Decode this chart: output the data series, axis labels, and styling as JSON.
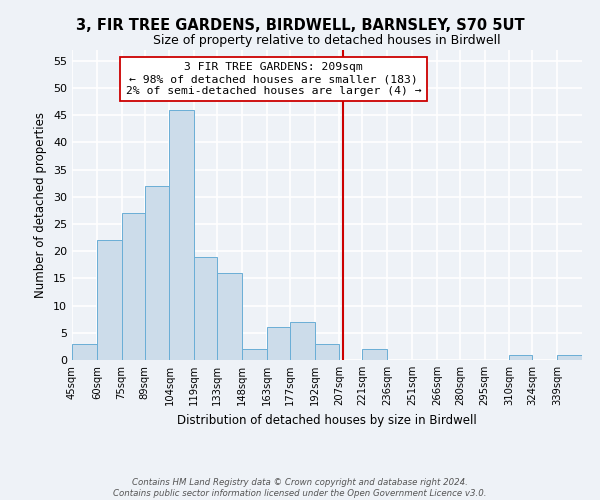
{
  "title": "3, FIR TREE GARDENS, BIRDWELL, BARNSLEY, S70 5UT",
  "subtitle": "Size of property relative to detached houses in Birdwell",
  "xlabel": "Distribution of detached houses by size in Birdwell",
  "ylabel": "Number of detached properties",
  "bin_labels": [
    "45sqm",
    "60sqm",
    "75sqm",
    "89sqm",
    "104sqm",
    "119sqm",
    "133sqm",
    "148sqm",
    "163sqm",
    "177sqm",
    "192sqm",
    "207sqm",
    "221sqm",
    "236sqm",
    "251sqm",
    "266sqm",
    "280sqm",
    "295sqm",
    "310sqm",
    "324sqm",
    "339sqm"
  ],
  "bin_edges": [
    45,
    60,
    75,
    89,
    104,
    119,
    133,
    148,
    163,
    177,
    192,
    207,
    221,
    236,
    251,
    266,
    280,
    295,
    310,
    324,
    339,
    354
  ],
  "bar_heights": [
    3,
    22,
    27,
    32,
    46,
    19,
    16,
    2,
    6,
    7,
    3,
    0,
    2,
    0,
    0,
    0,
    0,
    0,
    1,
    0,
    1
  ],
  "bar_color": "#ccdcea",
  "bar_edge_color": "#6aaed6",
  "reference_line_x": 209,
  "reference_line_color": "#cc0000",
  "annotation_line1": "3 FIR TREE GARDENS: 209sqm",
  "annotation_line2": "← 98% of detached houses are smaller (183)",
  "annotation_line3": "2% of semi-detached houses are larger (4) →",
  "annotation_box_color": "#ffffff",
  "annotation_box_edge": "#cc0000",
  "ylim": [
    0,
    57
  ],
  "yticks": [
    0,
    5,
    10,
    15,
    20,
    25,
    30,
    35,
    40,
    45,
    50,
    55
  ],
  "footer_line1": "Contains HM Land Registry data © Crown copyright and database right 2024.",
  "footer_line2": "Contains public sector information licensed under the Open Government Licence v3.0.",
  "background_color": "#eef2f7",
  "grid_color": "#ffffff"
}
